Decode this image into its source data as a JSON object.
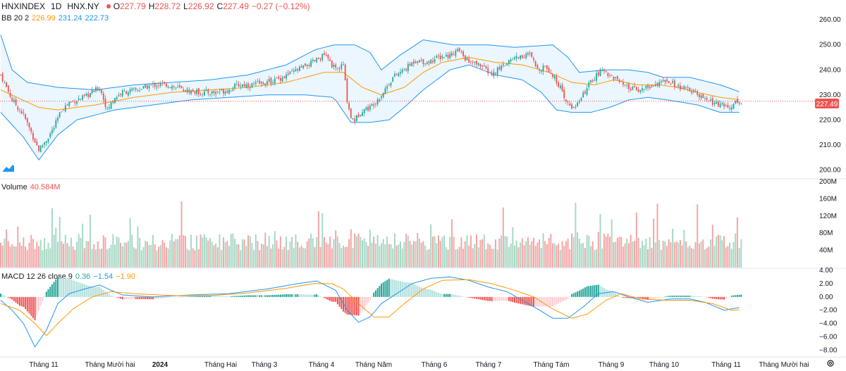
{
  "header": {
    "symbol": "HNXINDEX",
    "interval": "1D",
    "exchange": "HNX.NY",
    "open_label": "O",
    "open": "227.79",
    "high_label": "H",
    "high": "228.72",
    "low_label": "L",
    "low": "226.92",
    "close_label": "C",
    "close": "227.49",
    "change": "−0.27 (−0.12%)"
  },
  "bb_legend": {
    "name": "BB 20 2",
    "basis": "226.99",
    "upper": "231.24",
    "lower": "222.73"
  },
  "volume_legend": {
    "name": "Volume",
    "value": "40.584M"
  },
  "macd_legend": {
    "name": "MACD 12 26 close 9",
    "hist": "0.36",
    "macd": "−1.54",
    "signal": "−1.90"
  },
  "last_price_tag": "227.49",
  "colors": {
    "up": "#26a69a",
    "down": "#ef5350",
    "vol_up": "#a7d8c4",
    "vol_down": "#f4a6a6",
    "bb_basis": "#ff9800",
    "bb_band": "#2196f3",
    "bb_fill": "#e3f2fd",
    "macd_line": "#2196f3",
    "signal_line": "#ff9800"
  },
  "chart_data": {
    "type": "candlestick",
    "price_axis": {
      "ticks": [
        "260.00",
        "250.00",
        "240.00",
        "230.00",
        "220.00",
        "210.00",
        "200.00"
      ],
      "range": [
        197,
        264
      ]
    },
    "volume_axis": {
      "ticks": [
        "200M",
        "160M",
        "120M",
        "80M",
        "40M"
      ],
      "range": [
        0,
        200
      ]
    },
    "macd_axis": {
      "ticks": [
        "4.00",
        "2.00",
        "0.00",
        "−2.00",
        "−4.00",
        "−6.00",
        "−8.00"
      ],
      "range": [
        -8.8,
        4
      ]
    },
    "x_labels": [
      "Tháng 11",
      "Tháng Mười hai",
      "2024",
      "Tháng Hai",
      "Tháng 3",
      "Tháng 4",
      "Tháng Năm",
      "Tháng 6",
      "Tháng 7",
      "Tháng Tám",
      "Tháng 9",
      "Tháng 10",
      "Tháng 11",
      "Tháng Mười hai"
    ],
    "close_path": [
      [
        0,
        238
      ],
      [
        6,
        228
      ],
      [
        12,
        222
      ],
      [
        16,
        215
      ],
      [
        20,
        208
      ],
      [
        24,
        212
      ],
      [
        28,
        217
      ],
      [
        32,
        224
      ],
      [
        36,
        227
      ],
      [
        44,
        229
      ],
      [
        52,
        233
      ],
      [
        56,
        224
      ],
      [
        60,
        229
      ],
      [
        64,
        231
      ],
      [
        72,
        232
      ],
      [
        80,
        234
      ],
      [
        88,
        234
      ],
      [
        96,
        232
      ],
      [
        104,
        231
      ],
      [
        112,
        231
      ],
      [
        120,
        232
      ],
      [
        124,
        234
      ],
      [
        132,
        234
      ],
      [
        140,
        235
      ],
      [
        148,
        237
      ],
      [
        156,
        240
      ],
      [
        164,
        243
      ],
      [
        170,
        246
      ],
      [
        176,
        240
      ],
      [
        180,
        242
      ],
      [
        182,
        228
      ],
      [
        184,
        221
      ],
      [
        186,
        220
      ],
      [
        190,
        224
      ],
      [
        194,
        225
      ],
      [
        200,
        230
      ],
      [
        206,
        237
      ],
      [
        212,
        240
      ],
      [
        218,
        244
      ],
      [
        224,
        243
      ],
      [
        230,
        245
      ],
      [
        236,
        246
      ],
      [
        240,
        248
      ],
      [
        246,
        243
      ],
      [
        252,
        242
      ],
      [
        258,
        238
      ],
      [
        264,
        242
      ],
      [
        270,
        245
      ],
      [
        278,
        246
      ],
      [
        282,
        240
      ],
      [
        286,
        242
      ],
      [
        290,
        238
      ],
      [
        294,
        233
      ],
      [
        296,
        228
      ],
      [
        300,
        225
      ],
      [
        304,
        227
      ],
      [
        308,
        233
      ],
      [
        312,
        237
      ],
      [
        316,
        240
      ],
      [
        320,
        238
      ],
      [
        324,
        236
      ],
      [
        328,
        233
      ],
      [
        334,
        232
      ],
      [
        340,
        233
      ],
      [
        346,
        235
      ],
      [
        352,
        235
      ],
      [
        356,
        233
      ],
      [
        362,
        232
      ],
      [
        368,
        229
      ],
      [
        374,
        227
      ],
      [
        378,
        226
      ],
      [
        382,
        225
      ],
      [
        386,
        227
      ],
      [
        389,
        227.5
      ]
    ],
    "bb_basis": [
      [
        0,
        232
      ],
      [
        20,
        225
      ],
      [
        30,
        224
      ],
      [
        50,
        226
      ],
      [
        70,
        229
      ],
      [
        90,
        231
      ],
      [
        110,
        232
      ],
      [
        130,
        233
      ],
      [
        150,
        235
      ],
      [
        170,
        239
      ],
      [
        180,
        239
      ],
      [
        190,
        233
      ],
      [
        200,
        230
      ],
      [
        212,
        233
      ],
      [
        222,
        239
      ],
      [
        232,
        243
      ],
      [
        246,
        245
      ],
      [
        260,
        243
      ],
      [
        274,
        242
      ],
      [
        288,
        239
      ],
      [
        300,
        235
      ],
      [
        312,
        234
      ],
      [
        322,
        236
      ],
      [
        334,
        234
      ],
      [
        346,
        234
      ],
      [
        356,
        233
      ],
      [
        366,
        231
      ],
      [
        378,
        229
      ],
      [
        389,
        228
      ]
    ],
    "bb_upper": [
      [
        0,
        254
      ],
      [
        6,
        240
      ],
      [
        14,
        235
      ],
      [
        30,
        233
      ],
      [
        50,
        232
      ],
      [
        70,
        234
      ],
      [
        90,
        235
      ],
      [
        110,
        236
      ],
      [
        130,
        238
      ],
      [
        150,
        242
      ],
      [
        165,
        248
      ],
      [
        175,
        250
      ],
      [
        186,
        250
      ],
      [
        194,
        247
      ],
      [
        200,
        240
      ],
      [
        210,
        246
      ],
      [
        222,
        252
      ],
      [
        238,
        250
      ],
      [
        256,
        250
      ],
      [
        270,
        249
      ],
      [
        290,
        250
      ],
      [
        298,
        245
      ],
      [
        304,
        239
      ],
      [
        318,
        240
      ],
      [
        330,
        240
      ],
      [
        340,
        239
      ],
      [
        348,
        237
      ],
      [
        362,
        237
      ],
      [
        378,
        234
      ],
      [
        389,
        231
      ]
    ],
    "bb_lower": [
      [
        0,
        223
      ],
      [
        12,
        213
      ],
      [
        20,
        204
      ],
      [
        30,
        214
      ],
      [
        40,
        220
      ],
      [
        60,
        224
      ],
      [
        80,
        226
      ],
      [
        100,
        228
      ],
      [
        120,
        229
      ],
      [
        140,
        230
      ],
      [
        160,
        230
      ],
      [
        175,
        229
      ],
      [
        184,
        219
      ],
      [
        194,
        219
      ],
      [
        204,
        220
      ],
      [
        212,
        225
      ],
      [
        222,
        232
      ],
      [
        236,
        240
      ],
      [
        246,
        242
      ],
      [
        260,
        238
      ],
      [
        274,
        236
      ],
      [
        284,
        231
      ],
      [
        292,
        224
      ],
      [
        300,
        223
      ],
      [
        310,
        223
      ],
      [
        320,
        225
      ],
      [
        330,
        228
      ],
      [
        340,
        229
      ],
      [
        350,
        228
      ],
      [
        366,
        226
      ],
      [
        378,
        223
      ],
      [
        389,
        223
      ]
    ],
    "macd_path": [
      [
        0,
        -0.5
      ],
      [
        6,
        -2
      ],
      [
        12,
        -4
      ],
      [
        18,
        -7.5
      ],
      [
        24,
        -5
      ],
      [
        30,
        -1
      ],
      [
        36,
        0.5
      ],
      [
        44,
        1.2
      ],
      [
        52,
        1.8
      ],
      [
        58,
        1
      ],
      [
        64,
        0.3
      ],
      [
        80,
        0
      ],
      [
        100,
        0.3
      ],
      [
        120,
        0.5
      ],
      [
        140,
        1.2
      ],
      [
        156,
        2
      ],
      [
        166,
        2.4
      ],
      [
        176,
        1
      ],
      [
        182,
        -2
      ],
      [
        188,
        -3.8
      ],
      [
        194,
        -3
      ],
      [
        200,
        -1
      ],
      [
        208,
        0.5
      ],
      [
        216,
        2
      ],
      [
        226,
        2.8
      ],
      [
        236,
        3
      ],
      [
        246,
        2.5
      ],
      [
        256,
        1.5
      ],
      [
        266,
        0.8
      ],
      [
        274,
        -0.5
      ],
      [
        282,
        -1.8
      ],
      [
        290,
        -3.2
      ],
      [
        298,
        -3.2
      ],
      [
        306,
        -1.5
      ],
      [
        314,
        0.5
      ],
      [
        322,
        0.8
      ],
      [
        330,
        0
      ],
      [
        340,
        -0.8
      ],
      [
        352,
        -0.3
      ],
      [
        362,
        -0.3
      ],
      [
        370,
        -0.8
      ],
      [
        380,
        -2
      ],
      [
        389,
        -1.54
      ]
    ],
    "signal_path": [
      [
        0,
        -1
      ],
      [
        10,
        -2
      ],
      [
        18,
        -4
      ],
      [
        24,
        -5.8
      ],
      [
        30,
        -4
      ],
      [
        38,
        -1.8
      ],
      [
        48,
        0
      ],
      [
        58,
        0.8
      ],
      [
        70,
        0.5
      ],
      [
        90,
        0.2
      ],
      [
        110,
        0.2
      ],
      [
        130,
        0.6
      ],
      [
        150,
        1.3
      ],
      [
        164,
        2
      ],
      [
        174,
        2
      ],
      [
        180,
        1.2
      ],
      [
        188,
        -1
      ],
      [
        196,
        -3
      ],
      [
        204,
        -3
      ],
      [
        212,
        -1
      ],
      [
        222,
        1.2
      ],
      [
        232,
        2.5
      ],
      [
        246,
        2.6
      ],
      [
        258,
        2
      ],
      [
        270,
        1
      ],
      [
        280,
        0
      ],
      [
        290,
        -1.8
      ],
      [
        300,
        -3.2
      ],
      [
        308,
        -2.6
      ],
      [
        318,
        -0.5
      ],
      [
        326,
        0.5
      ],
      [
        336,
        -0.3
      ],
      [
        350,
        -0.5
      ],
      [
        362,
        -0.5
      ],
      [
        374,
        -1
      ],
      [
        384,
        -2
      ],
      [
        389,
        -1.9
      ]
    ]
  }
}
